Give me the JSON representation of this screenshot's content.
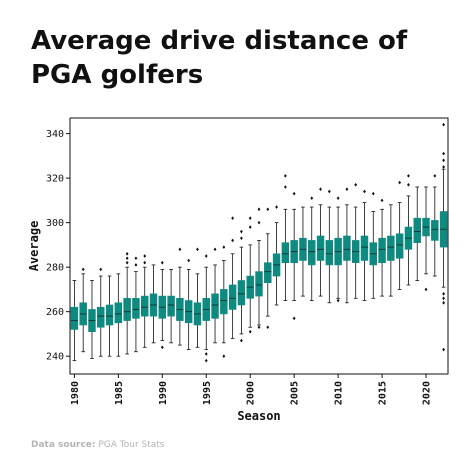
{
  "title_line1": "Average drive distance of",
  "title_line2": "PGA golfers",
  "source_label": "Data source:",
  "source_value": "PGA Tour Stats",
  "colors": {
    "box_fill": "#0f8a80",
    "box_edge": "#0b3b37",
    "text": "#111111",
    "source": "#b4b4b4"
  },
  "chart_data": {
    "type": "box",
    "title": "Average drive distance of PGA golfers",
    "xlabel": "Season",
    "ylabel": "Average",
    "ylim": [
      232,
      347
    ],
    "yticks": [
      240,
      260,
      280,
      300,
      320,
      340
    ],
    "xticks": [
      "1980",
      "1985",
      "1990",
      "1995",
      "2000",
      "2005",
      "2010",
      "2015",
      "2020"
    ],
    "grid": false,
    "series": [
      {
        "x": 1980,
        "min": 238,
        "q1": 252,
        "median": 256,
        "q3": 262,
        "max": 274,
        "outliers": []
      },
      {
        "x": 1981,
        "min": 242,
        "q1": 254,
        "median": 259,
        "q3": 264,
        "max": 277,
        "outliers": [
          279
        ]
      },
      {
        "x": 1982,
        "min": 239,
        "q1": 251,
        "median": 256,
        "q3": 261,
        "max": 274,
        "outliers": []
      },
      {
        "x": 1983,
        "min": 240,
        "q1": 253,
        "median": 258,
        "q3": 262,
        "max": 276,
        "outliers": [
          279
        ]
      },
      {
        "x": 1984,
        "min": 240,
        "q1": 254,
        "median": 258,
        "q3": 263,
        "max": 276,
        "outliers": []
      },
      {
        "x": 1985,
        "min": 240,
        "q1": 255,
        "median": 259,
        "q3": 264,
        "max": 277,
        "outliers": []
      },
      {
        "x": 1986,
        "min": 241,
        "q1": 256,
        "median": 260,
        "q3": 266,
        "max": 280,
        "outliers": [
          282,
          284,
          286
        ]
      },
      {
        "x": 1987,
        "min": 242,
        "q1": 257,
        "median": 261,
        "q3": 266,
        "max": 278,
        "outliers": [
          281,
          284
        ]
      },
      {
        "x": 1988,
        "min": 244,
        "q1": 258,
        "median": 262,
        "q3": 267,
        "max": 280,
        "outliers": [
          282,
          285
        ]
      },
      {
        "x": 1989,
        "min": 246,
        "q1": 258,
        "median": 263,
        "q3": 268,
        "max": 281,
        "outliers": []
      },
      {
        "x": 1990,
        "min": 247,
        "q1": 257,
        "median": 262,
        "q3": 267,
        "max": 279,
        "outliers": [
          244,
          282
        ]
      },
      {
        "x": 1991,
        "min": 246,
        "q1": 258,
        "median": 263,
        "q3": 267,
        "max": 279,
        "outliers": []
      },
      {
        "x": 1992,
        "min": 245,
        "q1": 256,
        "median": 261,
        "q3": 266,
        "max": 280,
        "outliers": [
          288
        ]
      },
      {
        "x": 1993,
        "min": 243,
        "q1": 255,
        "median": 260,
        "q3": 265,
        "max": 279,
        "outliers": [
          283
        ]
      },
      {
        "x": 1994,
        "min": 244,
        "q1": 254,
        "median": 259,
        "q3": 264,
        "max": 277,
        "outliers": [
          288
        ]
      },
      {
        "x": 1995,
        "min": 243,
        "q1": 256,
        "median": 261,
        "q3": 266,
        "max": 280,
        "outliers": [
          241,
          238,
          285
        ]
      },
      {
        "x": 1996,
        "min": 246,
        "q1": 257,
        "median": 263,
        "q3": 268,
        "max": 281,
        "outliers": [
          288
        ]
      },
      {
        "x": 1997,
        "min": 246,
        "q1": 259,
        "median": 265,
        "q3": 270,
        "max": 283,
        "outliers": [
          240,
          289
        ]
      },
      {
        "x": 1998,
        "min": 248,
        "q1": 261,
        "median": 266,
        "q3": 272,
        "max": 286,
        "outliers": [
          292,
          302
        ]
      },
      {
        "x": 1999,
        "min": 250,
        "q1": 263,
        "median": 268,
        "q3": 274,
        "max": 289,
        "outliers": [
          247,
          293,
          296
        ]
      },
      {
        "x": 2000,
        "min": 253,
        "q1": 266,
        "median": 271,
        "q3": 276,
        "max": 290,
        "outliers": [
          251,
          298,
          302
        ]
      },
      {
        "x": 2001,
        "min": 254,
        "q1": 267,
        "median": 272,
        "q3": 278,
        "max": 292,
        "outliers": [
          253,
          300,
          306
        ]
      },
      {
        "x": 2002,
        "min": 258,
        "q1": 273,
        "median": 278,
        "q3": 282,
        "max": 295,
        "outliers": [
          253,
          306
        ]
      },
      {
        "x": 2003,
        "min": 263,
        "q1": 276,
        "median": 281,
        "q3": 286,
        "max": 300,
        "outliers": [
          307
        ]
      },
      {
        "x": 2004,
        "min": 265,
        "q1": 282,
        "median": 286,
        "q3": 291,
        "max": 306,
        "outliers": [
          321,
          316
        ]
      },
      {
        "x": 2005,
        "min": 265,
        "q1": 282,
        "median": 287,
        "q3": 292,
        "max": 306,
        "outliers": [
          257,
          313
        ]
      },
      {
        "x": 2006,
        "min": 267,
        "q1": 283,
        "median": 288,
        "q3": 293,
        "max": 307,
        "outliers": []
      },
      {
        "x": 2007,
        "min": 265,
        "q1": 281,
        "median": 287,
        "q3": 292,
        "max": 307,
        "outliers": [
          311
        ]
      },
      {
        "x": 2008,
        "min": 267,
        "q1": 283,
        "median": 288,
        "q3": 294,
        "max": 308,
        "outliers": [
          315
        ]
      },
      {
        "x": 2009,
        "min": 264,
        "q1": 281,
        "median": 286,
        "q3": 292,
        "max": 307,
        "outliers": [
          314
        ]
      },
      {
        "x": 2010,
        "min": 266,
        "q1": 281,
        "median": 287,
        "q3": 293,
        "max": 307,
        "outliers": [
          311,
          265
        ]
      },
      {
        "x": 2011,
        "min": 264,
        "q1": 283,
        "median": 288,
        "q3": 294,
        "max": 308,
        "outliers": [
          315
        ]
      },
      {
        "x": 2012,
        "min": 266,
        "q1": 282,
        "median": 287,
        "q3": 292,
        "max": 307,
        "outliers": [
          317
        ]
      },
      {
        "x": 2013,
        "min": 265,
        "q1": 283,
        "median": 289,
        "q3": 294,
        "max": 309,
        "outliers": [
          314
        ]
      },
      {
        "x": 2014,
        "min": 266,
        "q1": 281,
        "median": 286,
        "q3": 291,
        "max": 305,
        "outliers": [
          313
        ]
      },
      {
        "x": 2015,
        "min": 267,
        "q1": 282,
        "median": 288,
        "q3": 293,
        "max": 306,
        "outliers": [
          310
        ]
      },
      {
        "x": 2016,
        "min": 267,
        "q1": 283,
        "median": 289,
        "q3": 294,
        "max": 308,
        "outliers": []
      },
      {
        "x": 2017,
        "min": 270,
        "q1": 284,
        "median": 290,
        "q3": 295,
        "max": 309,
        "outliers": [
          318
        ]
      },
      {
        "x": 2018,
        "min": 272,
        "q1": 288,
        "median": 293,
        "q3": 298,
        "max": 312,
        "outliers": [
          317,
          321
        ]
      },
      {
        "x": 2019,
        "min": 274,
        "q1": 291,
        "median": 296,
        "q3": 302,
        "max": 316,
        "outliers": []
      },
      {
        "x": 2020,
        "min": 277,
        "q1": 294,
        "median": 298,
        "q3": 302,
        "max": 316,
        "outliers": [
          270
        ]
      },
      {
        "x": 2021,
        "min": 276,
        "q1": 292,
        "median": 297,
        "q3": 301,
        "max": 316,
        "outliers": [
          321
        ]
      },
      {
        "x": 2022,
        "min": 271,
        "q1": 289,
        "median": 297,
        "q3": 305,
        "max": 324,
        "outliers": [
          344,
          331,
          328,
          325,
          268,
          266,
          264,
          243
        ]
      }
    ]
  }
}
